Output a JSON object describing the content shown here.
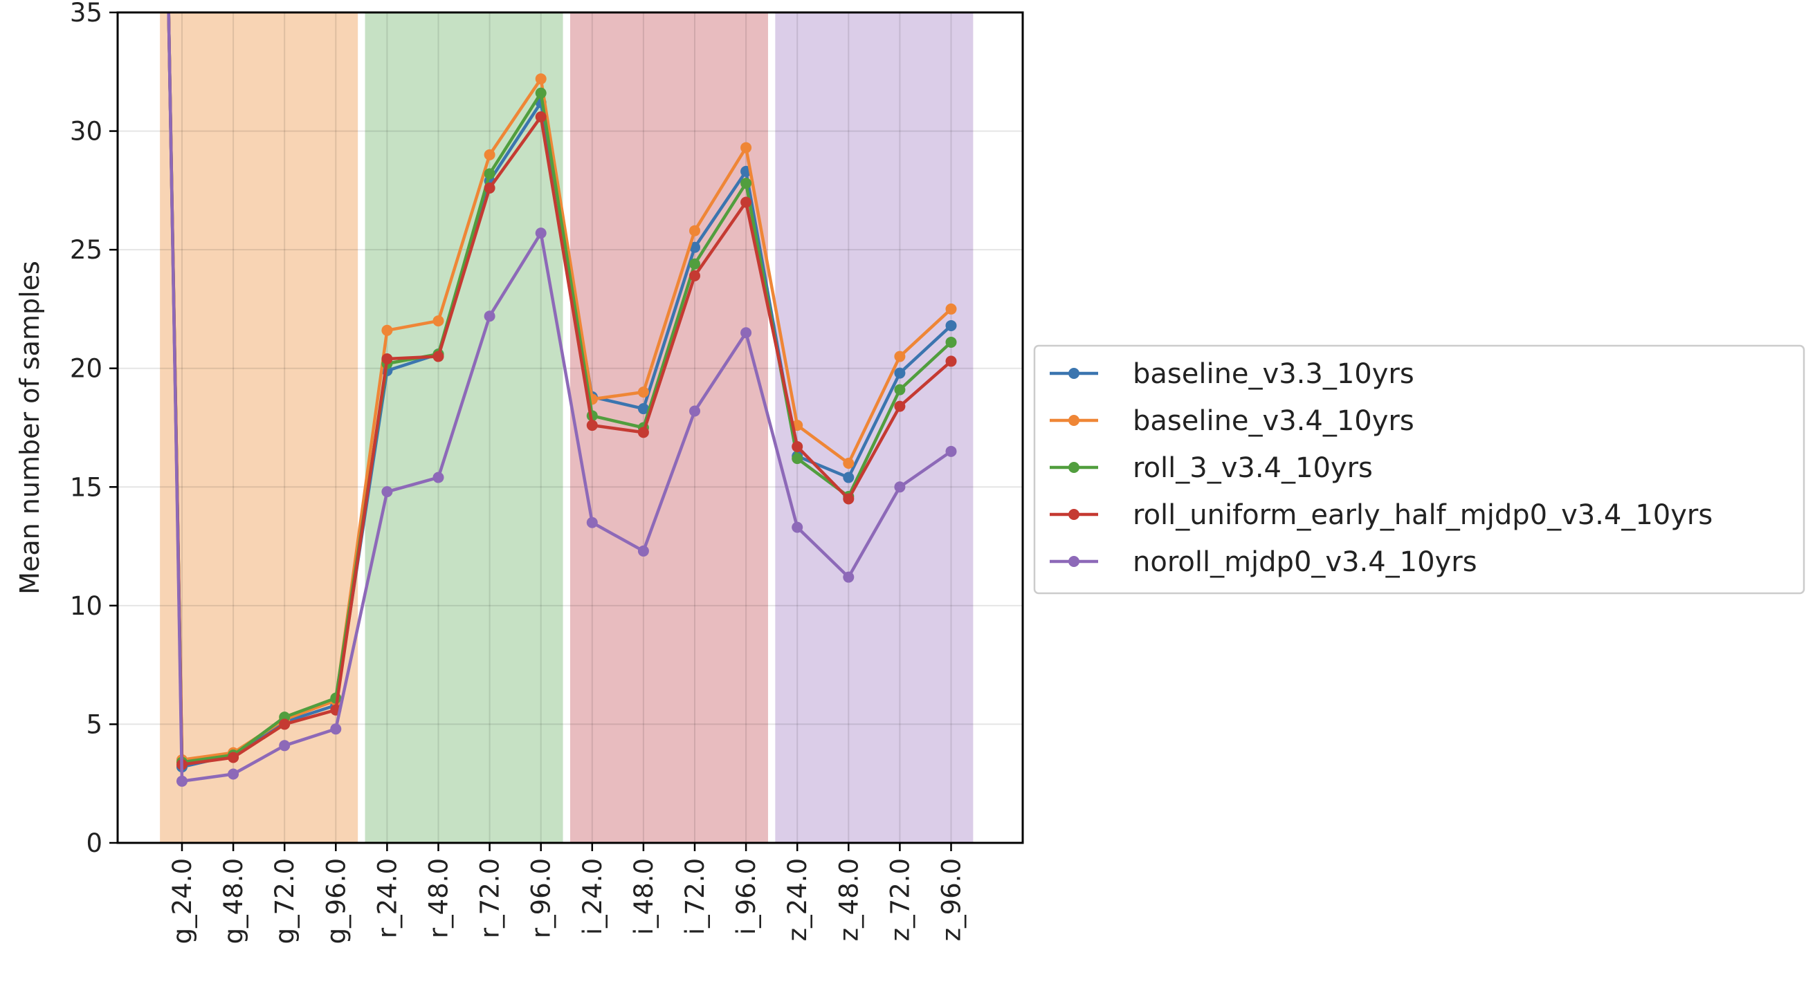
{
  "chart_data": {
    "type": "line",
    "title": "",
    "xlabel": "",
    "ylabel": "Mean number of samples",
    "categories": [
      "g_24.0",
      "g_48.0",
      "g_72.0",
      "g_96.0",
      "r_24.0",
      "r_48.0",
      "r_72.0",
      "r_96.0",
      "i_24.0",
      "i_48.0",
      "i_72.0",
      "i_96.0",
      "z_24.0",
      "z_48.0",
      "z_72.0",
      "z_96.0"
    ],
    "ylim": [
      0,
      35
    ],
    "yticks": [
      "0",
      "5",
      "10",
      "15",
      "20",
      "25",
      "30",
      "35"
    ],
    "grid": true,
    "legend_position": "right-center, outside the plot",
    "bands": [
      {
        "from": "g_24.0",
        "to": "g_96.0",
        "color": "#f8d4b4"
      },
      {
        "from": "r_24.0",
        "to": "r_96.0",
        "color": "#c6e1c4"
      },
      {
        "from": "i_24.0",
        "to": "i_96.0",
        "color": "#e8bcbf"
      },
      {
        "from": "z_24.0",
        "to": "z_96.0",
        "color": "#dbcde8"
      }
    ],
    "series": [
      {
        "name": "baseline_v3.3_10yrs",
        "color": "#3b75af",
        "values": [
          3.2,
          3.7,
          5.1,
          5.8,
          19.9,
          20.6,
          27.9,
          31.2,
          18.8,
          18.3,
          25.1,
          28.3,
          16.3,
          15.4,
          19.8,
          21.8
        ]
      },
      {
        "name": "baseline_v3.4_10yrs",
        "color": "#ef8636",
        "values": [
          3.5,
          3.8,
          5.2,
          6.0,
          21.6,
          22.0,
          29.0,
          32.2,
          18.7,
          19.0,
          25.8,
          29.3,
          17.6,
          16.0,
          20.5,
          22.5
        ]
      },
      {
        "name": "roll_3_v3.4_10yrs",
        "color": "#519e3e",
        "values": [
          3.4,
          3.7,
          5.3,
          6.1,
          20.2,
          20.6,
          28.2,
          31.6,
          18.0,
          17.5,
          24.4,
          27.8,
          16.2,
          14.6,
          19.1,
          21.1
        ]
      },
      {
        "name": "roll_uniform_early_half_mjdp0_v3.4_10yrs",
        "color": "#c53a32",
        "values": [
          3.3,
          3.6,
          5.0,
          5.6,
          20.4,
          20.5,
          27.6,
          30.6,
          17.6,
          17.3,
          23.9,
          27.0,
          16.7,
          14.5,
          18.4,
          20.3
        ]
      },
      {
        "name": "noroll_mjdp0_v3.4_10yrs",
        "color": "#8d69b8",
        "values": [
          2.6,
          2.9,
          4.1,
          4.8,
          14.8,
          15.4,
          22.2,
          25.7,
          13.5,
          12.3,
          18.2,
          21.5,
          13.3,
          11.2,
          15.0,
          16.5
        ]
      }
    ],
    "offscale_start": {
      "category_before": "g_24.0",
      "note": "all series start above the top of the y-axis"
    }
  }
}
